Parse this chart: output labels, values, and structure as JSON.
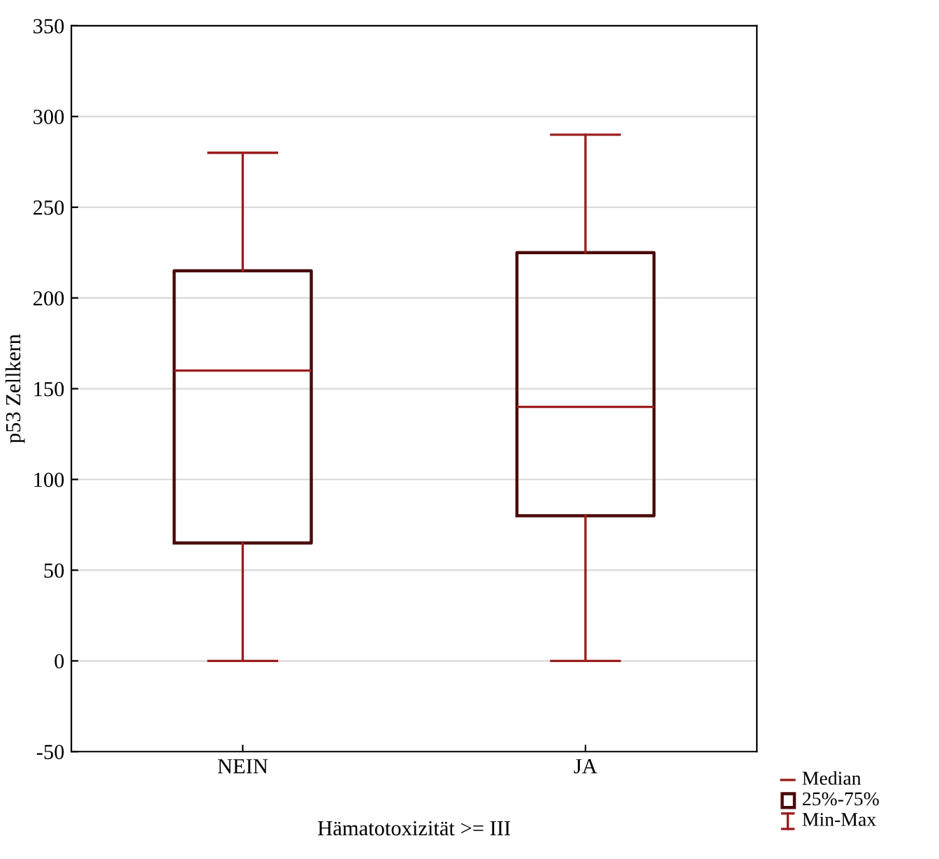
{
  "chart_data": {
    "type": "box",
    "xlabel": "Hämatotoxizität >= III",
    "ylabel": "p53 Zellkern",
    "categories": [
      "NEIN",
      "JA"
    ],
    "boxes": [
      {
        "low": 0,
        "q1": 65,
        "median": 160,
        "q3": 215,
        "high": 280
      },
      {
        "low": 0,
        "q1": 80,
        "median": 140,
        "q3": 225,
        "high": 290
      }
    ],
    "ylim": [
      -50,
      350
    ],
    "yticks": [
      -50,
      0,
      50,
      100,
      150,
      200,
      250,
      300,
      350
    ],
    "grid": "y",
    "annotations": [
      "Median",
      "25%-75%",
      "Min-Max"
    ]
  }
}
